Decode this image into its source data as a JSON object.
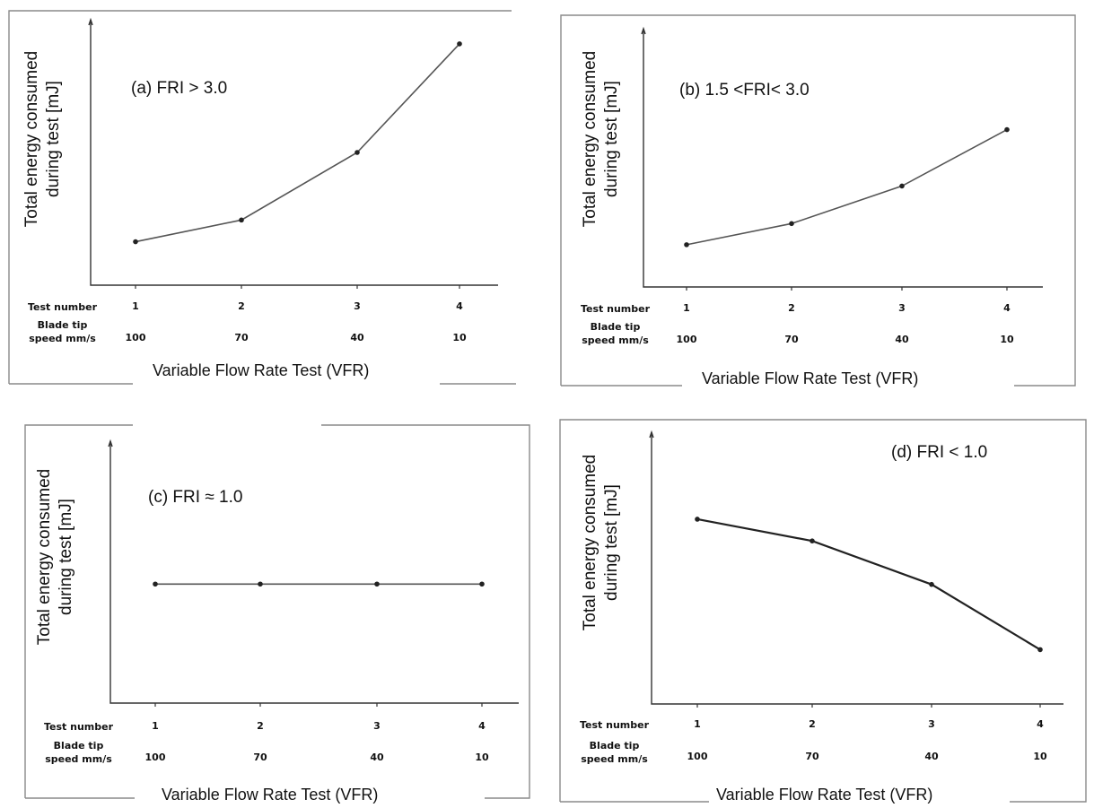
{
  "shared": {
    "y_axis_label_line1": "Total energy consumed",
    "y_axis_label_line2": "during test [mJ]",
    "row_label_test": "Test number",
    "row_label_blade_line1": "Blade tip",
    "row_label_blade_line2": "speed mm/s",
    "x_axis_title": "Variable Flow Rate Test (VFR)"
  },
  "chart_data": [
    {
      "type": "line",
      "title": "(a) FRI > 3.0",
      "xlabel": "Variable Flow Rate Test (VFR)",
      "ylabel": "Total energy consumed during test [mJ]",
      "categories": [
        "1",
        "2",
        "3",
        "4"
      ],
      "secondary_categories": [
        "100",
        "70",
        "40",
        "10"
      ],
      "values": [
        0.18,
        0.27,
        0.55,
        1.0
      ],
      "ylim": [
        0,
        1.1
      ]
    },
    {
      "type": "line",
      "title": "(b) 1.5 <FRI< 3.0",
      "xlabel": "Variable Flow Rate Test (VFR)",
      "ylabel": "Total energy consumed during test [mJ]",
      "categories": [
        "1",
        "2",
        "3",
        "4"
      ],
      "secondary_categories": [
        "100",
        "70",
        "40",
        "10"
      ],
      "values": [
        0.18,
        0.27,
        0.43,
        0.67
      ],
      "ylim": [
        0,
        1.1
      ]
    },
    {
      "type": "line",
      "title": "(c) FRI ≈ 1.0",
      "xlabel": "Variable Flow Rate Test (VFR)",
      "ylabel": "Total energy consumed during test [mJ]",
      "categories": [
        "1",
        "2",
        "3",
        "4"
      ],
      "secondary_categories": [
        "100",
        "70",
        "40",
        "10"
      ],
      "values": [
        0.5,
        0.5,
        0.5,
        0.5
      ],
      "ylim": [
        0,
        1.1
      ]
    },
    {
      "type": "line",
      "title": "(d) FRI < 1.0",
      "xlabel": "Variable Flow Rate Test (VFR)",
      "ylabel": "Total energy consumed during test [mJ]",
      "categories": [
        "1",
        "2",
        "3",
        "4"
      ],
      "secondary_categories": [
        "100",
        "70",
        "40",
        "10"
      ],
      "values": [
        0.68,
        0.6,
        0.44,
        0.2
      ],
      "ylim": [
        0,
        1.0
      ]
    }
  ]
}
